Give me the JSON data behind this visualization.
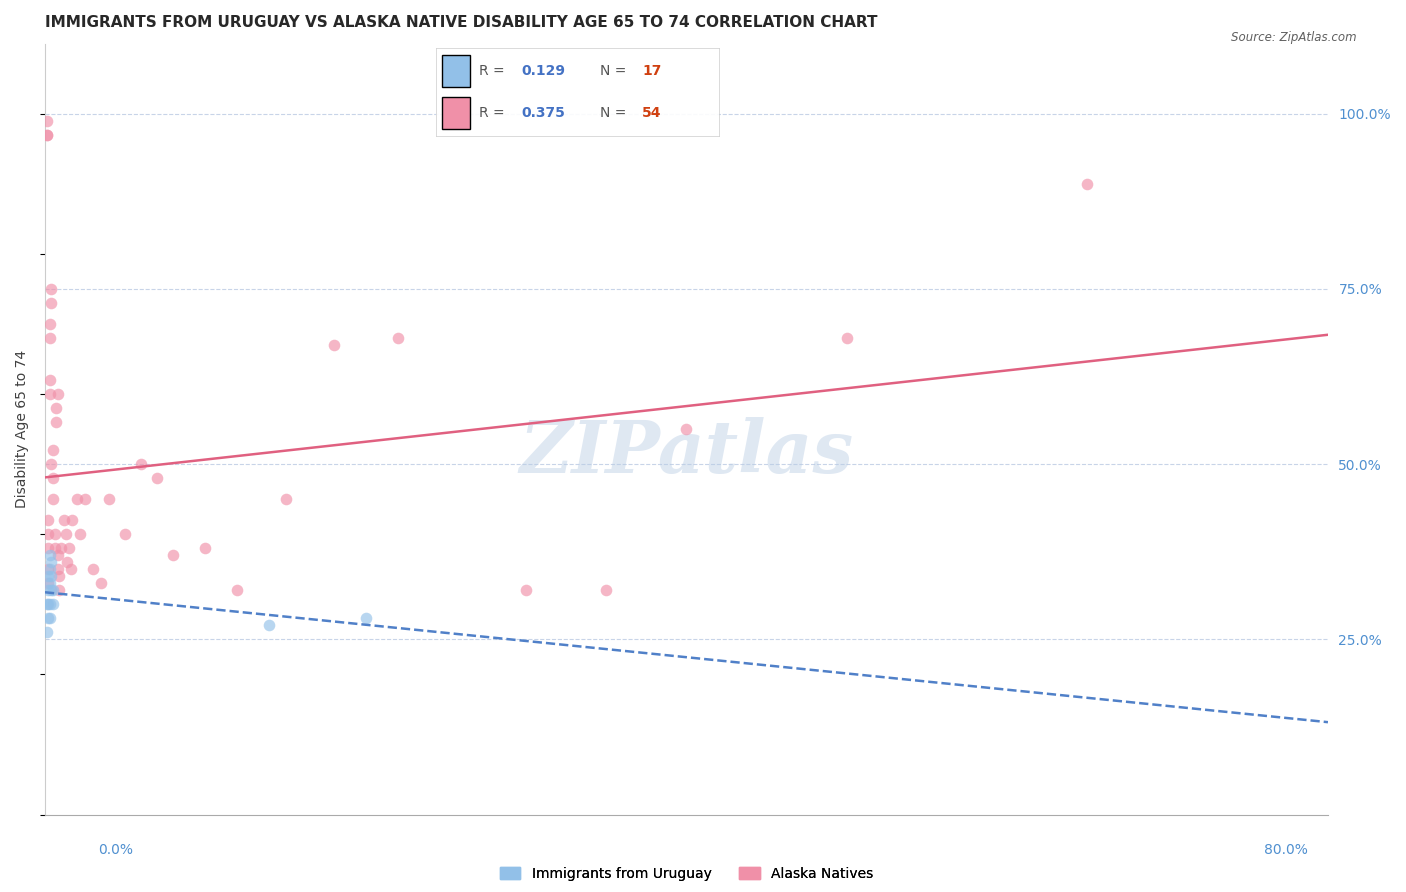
{
  "title": "IMMIGRANTS FROM URUGUAY VS ALASKA NATIVE DISABILITY AGE 65 TO 74 CORRELATION CHART",
  "source": "Source: ZipAtlas.com",
  "ylabel": "Disability Age 65 to 74",
  "watermark": "ZIPatlas",
  "uruguay_x": [
    0.001,
    0.001,
    0.002,
    0.002,
    0.002,
    0.002,
    0.003,
    0.003,
    0.003,
    0.003,
    0.003,
    0.004,
    0.004,
    0.004,
    0.005,
    0.005,
    0.14,
    0.2
  ],
  "uruguay_y": [
    0.3,
    0.26,
    0.28,
    0.3,
    0.32,
    0.34,
    0.28,
    0.3,
    0.33,
    0.35,
    0.37,
    0.32,
    0.34,
    0.36,
    0.3,
    0.32,
    0.27,
    0.28
  ],
  "alaska_x": [
    0.001,
    0.001,
    0.001,
    0.002,
    0.002,
    0.002,
    0.002,
    0.002,
    0.003,
    0.003,
    0.003,
    0.003,
    0.004,
    0.004,
    0.004,
    0.005,
    0.005,
    0.005,
    0.006,
    0.006,
    0.007,
    0.007,
    0.008,
    0.008,
    0.008,
    0.009,
    0.009,
    0.01,
    0.012,
    0.013,
    0.014,
    0.015,
    0.016,
    0.017,
    0.02,
    0.022,
    0.025,
    0.03,
    0.035,
    0.04,
    0.05,
    0.06,
    0.07,
    0.08,
    0.1,
    0.12,
    0.15,
    0.18,
    0.22,
    0.3,
    0.35,
    0.4,
    0.5,
    0.65
  ],
  "alaska_y": [
    0.97,
    0.97,
    0.99,
    0.33,
    0.35,
    0.38,
    0.4,
    0.42,
    0.6,
    0.62,
    0.68,
    0.7,
    0.75,
    0.73,
    0.5,
    0.48,
    0.45,
    0.52,
    0.38,
    0.4,
    0.58,
    0.56,
    0.35,
    0.37,
    0.6,
    0.32,
    0.34,
    0.38,
    0.42,
    0.4,
    0.36,
    0.38,
    0.35,
    0.42,
    0.45,
    0.4,
    0.45,
    0.35,
    0.33,
    0.45,
    0.4,
    0.5,
    0.48,
    0.37,
    0.38,
    0.32,
    0.45,
    0.67,
    0.68,
    0.32,
    0.32,
    0.55,
    0.68,
    0.9
  ],
  "xlim": [
    0.0,
    0.8
  ],
  "ylim": [
    0.0,
    1.1
  ],
  "scatter_color_uruguay": "#92c0e8",
  "scatter_color_alaska": "#f090a8",
  "line_color_uruguay": "#5080c8",
  "line_color_alaska": "#e06080",
  "scatter_alpha": 0.65,
  "scatter_size": 70,
  "background_color": "#ffffff",
  "grid_color": "#c8d4e8",
  "title_fontsize": 11,
  "axis_label_color": "#404040",
  "right_axis_color": "#5090d0",
  "tick_color": "#5090d0"
}
